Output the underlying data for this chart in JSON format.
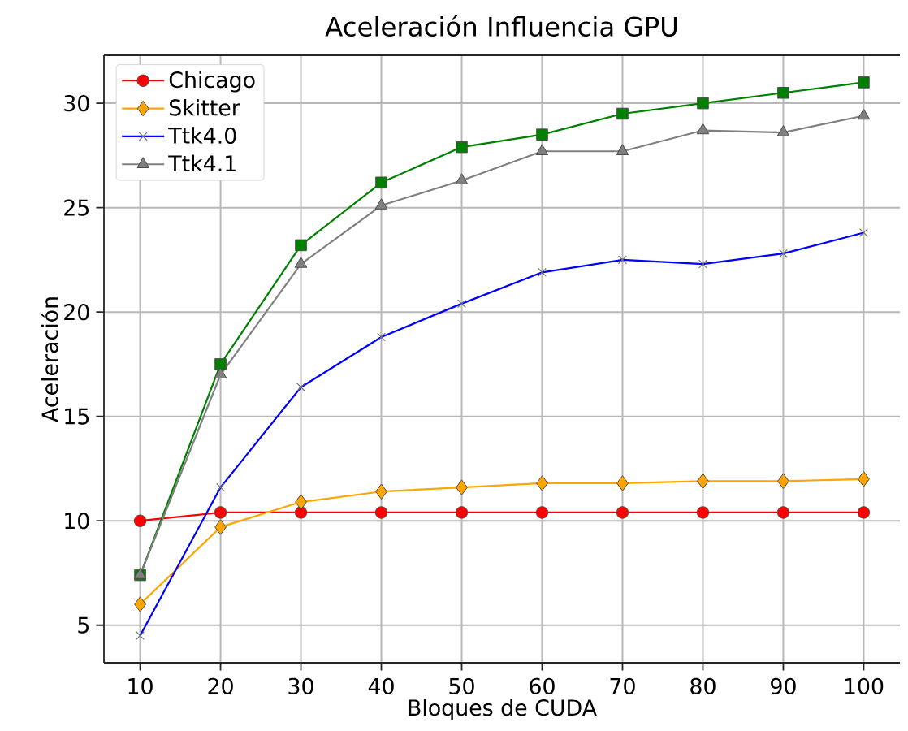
{
  "chart_data": {
    "type": "line",
    "title": "Aceleración Influencia GPU",
    "xlabel": "Bloques de CUDA",
    "ylabel": "Aceleración",
    "x": [
      10,
      20,
      30,
      40,
      50,
      60,
      70,
      80,
      90,
      100
    ],
    "xlim": [
      5.5,
      104.5
    ],
    "ylim": [
      3.2,
      32.3
    ],
    "xticks": [
      10,
      20,
      30,
      40,
      50,
      60,
      70,
      80,
      90,
      100
    ],
    "yticks": [
      5,
      10,
      15,
      20,
      25,
      30
    ],
    "grid": true,
    "legend": "top left",
    "series": [
      {
        "name": "Chicago",
        "color": "#ff0000",
        "marker": "circle",
        "values": [
          10.0,
          10.4,
          10.4,
          10.4,
          10.4,
          10.4,
          10.4,
          10.4,
          10.4,
          10.4
        ]
      },
      {
        "color": "#008000",
        "marker": "square",
        "values": [
          7.4,
          17.5,
          23.2,
          26.2,
          27.9,
          28.5,
          29.5,
          30.0,
          30.5,
          31.0
        ]
      },
      {
        "name": "Skitter",
        "color": "#ffa500",
        "marker": "diamond",
        "values": [
          6.0,
          9.7,
          10.9,
          11.4,
          11.6,
          11.8,
          11.8,
          11.9,
          11.9,
          12.0
        ]
      },
      {
        "name": "Ttk4.0",
        "color": "#0000ff",
        "marker": "cross",
        "values": [
          4.5,
          11.6,
          16.4,
          18.8,
          20.4,
          21.9,
          22.5,
          22.3,
          22.8,
          23.8
        ]
      },
      {
        "name": "Ttk4.1",
        "color": "#808080",
        "marker": "triangle",
        "values": [
          7.4,
          17.0,
          22.3,
          25.1,
          26.3,
          27.7,
          27.7,
          28.7,
          28.6,
          29.4
        ]
      }
    ]
  }
}
